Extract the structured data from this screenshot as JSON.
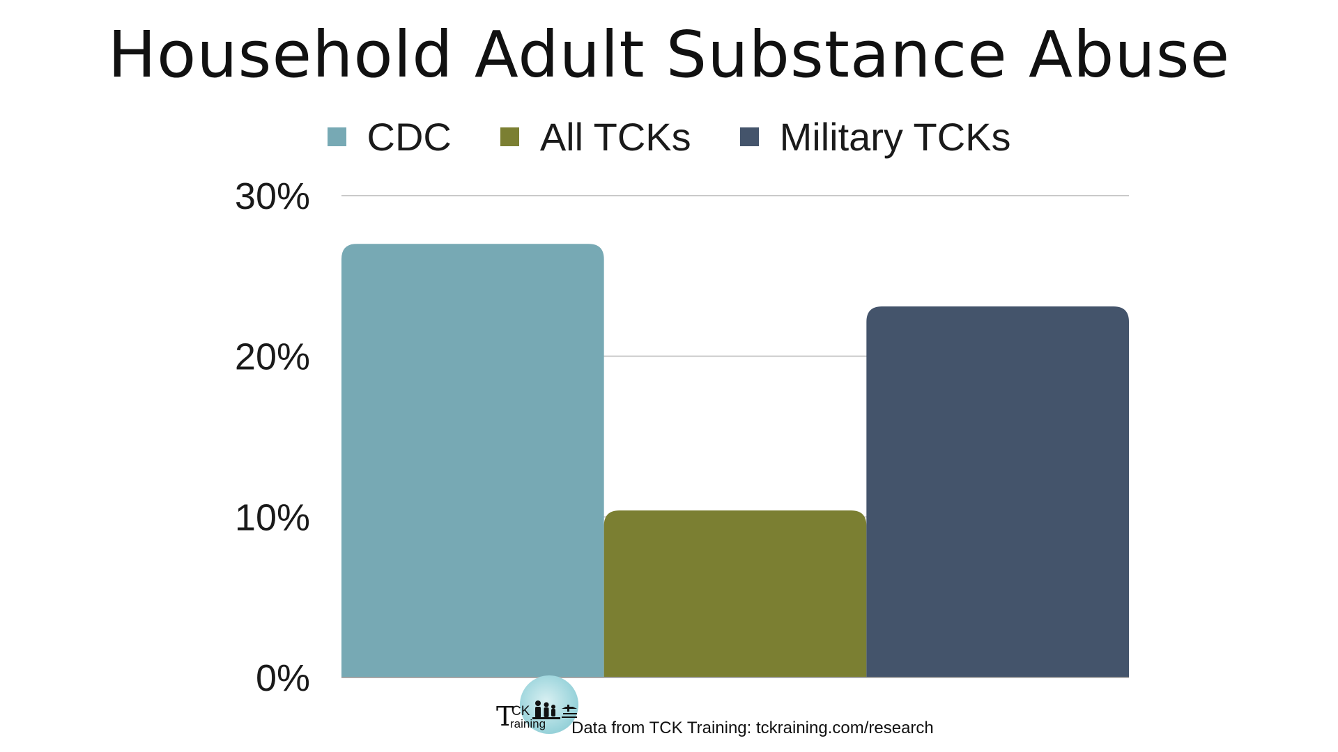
{
  "chart_data": {
    "type": "bar",
    "title": "Household Adult Substance Abuse",
    "categories": [
      ""
    ],
    "series": [
      {
        "name": "CDC",
        "values": [
          27
        ],
        "color": "#77a9b4"
      },
      {
        "name": "All TCKs",
        "values": [
          10.4
        ],
        "color": "#7b7f32"
      },
      {
        "name": "Military TCKs",
        "values": [
          23.1
        ],
        "color": "#44546b"
      }
    ],
    "y_ticks": [
      "0%",
      "10%",
      "20%",
      "30%"
    ],
    "y_tick_values": [
      0,
      10,
      20,
      30
    ],
    "ylim": [
      0,
      30
    ],
    "xlabel": "",
    "ylabel": "",
    "grid": true,
    "legend_position": "top"
  },
  "footer": {
    "logo_big_letter": "T",
    "logo_ck": "CK",
    "logo_training": "raining",
    "source": "Data from TCK Training: tckraining.com/research"
  },
  "colors": {
    "grid": "#c9c9c9",
    "axis": "#a6a6a6",
    "text": "#1a1a1a"
  }
}
